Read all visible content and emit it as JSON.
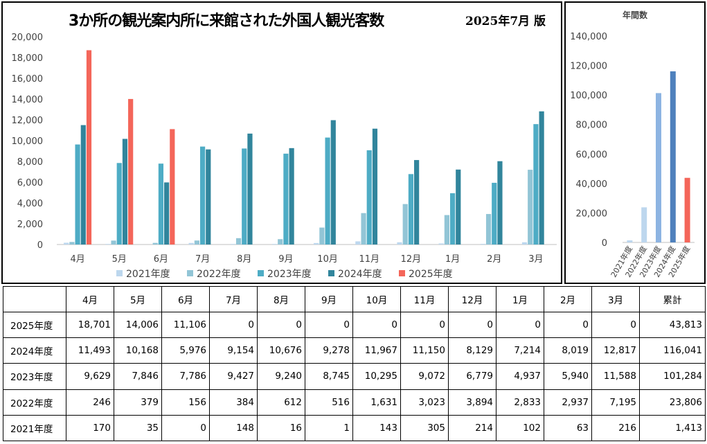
{
  "header": {
    "title": "3か所の観光案内所に来館された外国人観光客数",
    "edition": "2025年7月 版"
  },
  "colors": {
    "2021年度": "#bdd7ee",
    "2022年度": "#92c5d6",
    "2023年度": "#4eacc5",
    "2024年度": "#31859c",
    "2025年度": "#f4665a",
    "annual_2021年度": "#bdd7ee",
    "annual_2022年度": "#bdd7ee",
    "annual_2023年度": "#8db4e2",
    "annual_2024年度": "#4f81bd",
    "annual_2025年度": "#f4665a",
    "gridline": "#d9d9d9",
    "axis": "#000000"
  },
  "chart_data": [
    {
      "type": "bar",
      "title": "3か所の観光案内所に来館された外国人観光客数",
      "categories": [
        "4月",
        "5月",
        "6月",
        "7月",
        "8月",
        "9月",
        "10月",
        "11月",
        "12月",
        "1月",
        "2月",
        "3月"
      ],
      "series": [
        {
          "name": "2021年度",
          "values": [
            170,
            35,
            0,
            148,
            16,
            1,
            143,
            305,
            214,
            102,
            63,
            216
          ]
        },
        {
          "name": "2022年度",
          "values": [
            246,
            379,
            156,
            384,
            612,
            516,
            1631,
            3023,
            3894,
            2833,
            2937,
            7195
          ]
        },
        {
          "name": "2023年度",
          "values": [
            9629,
            7846,
            7786,
            9427,
            9240,
            8745,
            10295,
            9072,
            6779,
            4937,
            5940,
            11588
          ]
        },
        {
          "name": "2024年度",
          "values": [
            11493,
            10168,
            5976,
            9154,
            10676,
            9278,
            11967,
            11150,
            8129,
            7214,
            8019,
            12817
          ]
        },
        {
          "name": "2025年度",
          "values": [
            18701,
            14006,
            11106,
            null,
            null,
            null,
            null,
            null,
            null,
            null,
            null,
            null
          ]
        }
      ],
      "ylim": [
        0,
        20000
      ],
      "yticks": [
        0,
        2000,
        4000,
        6000,
        8000,
        10000,
        12000,
        14000,
        16000,
        18000,
        20000
      ],
      "ytick_labels": [
        "0",
        "2,000",
        "4,000",
        "6,000",
        "8,000",
        "10,000",
        "12,000",
        "14,000",
        "16,000",
        "18,000",
        "20,000"
      ],
      "grid": false,
      "legend_position": "bottom"
    },
    {
      "type": "bar",
      "title": "年間数",
      "categories": [
        "2021年度",
        "2022年度",
        "2023年度",
        "2024年度",
        "2025年度"
      ],
      "values": [
        1413,
        23806,
        101284,
        116041,
        43813
      ],
      "ylim": [
        0,
        140000
      ],
      "yticks": [
        0,
        20000,
        40000,
        60000,
        80000,
        100000,
        120000,
        140000
      ],
      "ytick_labels": [
        "0",
        "20,000",
        "40,000",
        "60,000",
        "80,000",
        "100,000",
        "120,000",
        "140,000"
      ],
      "grid": false
    }
  ],
  "table": {
    "headers": [
      "",
      "4月",
      "5月",
      "6月",
      "7月",
      "8月",
      "9月",
      "10月",
      "11月",
      "12月",
      "1月",
      "2月",
      "3月",
      "累計"
    ],
    "rows": [
      {
        "label": "2025年度",
        "cells": [
          "18,701",
          "14,006",
          "11,106",
          "0",
          "0",
          "0",
          "0",
          "0",
          "0",
          "0",
          "0",
          "0",
          "43,813"
        ]
      },
      {
        "label": "2024年度",
        "cells": [
          "11,493",
          "10,168",
          "5,976",
          "9,154",
          "10,676",
          "9,278",
          "11,967",
          "11,150",
          "8,129",
          "7,214",
          "8,019",
          "12,817",
          "116,041"
        ]
      },
      {
        "label": "2023年度",
        "cells": [
          "9,629",
          "7,846",
          "7,786",
          "9,427",
          "9,240",
          "8,745",
          "10,295",
          "9,072",
          "6,779",
          "4,937",
          "5,940",
          "11,588",
          "101,284"
        ]
      },
      {
        "label": "2022年度",
        "cells": [
          "246",
          "379",
          "156",
          "384",
          "612",
          "516",
          "1,631",
          "3,023",
          "3,894",
          "2,833",
          "2,937",
          "7,195",
          "23,806"
        ]
      },
      {
        "label": "2021年度",
        "cells": [
          "170",
          "35",
          "0",
          "148",
          "16",
          "1",
          "143",
          "305",
          "214",
          "102",
          "63",
          "216",
          "1,413"
        ]
      }
    ]
  }
}
